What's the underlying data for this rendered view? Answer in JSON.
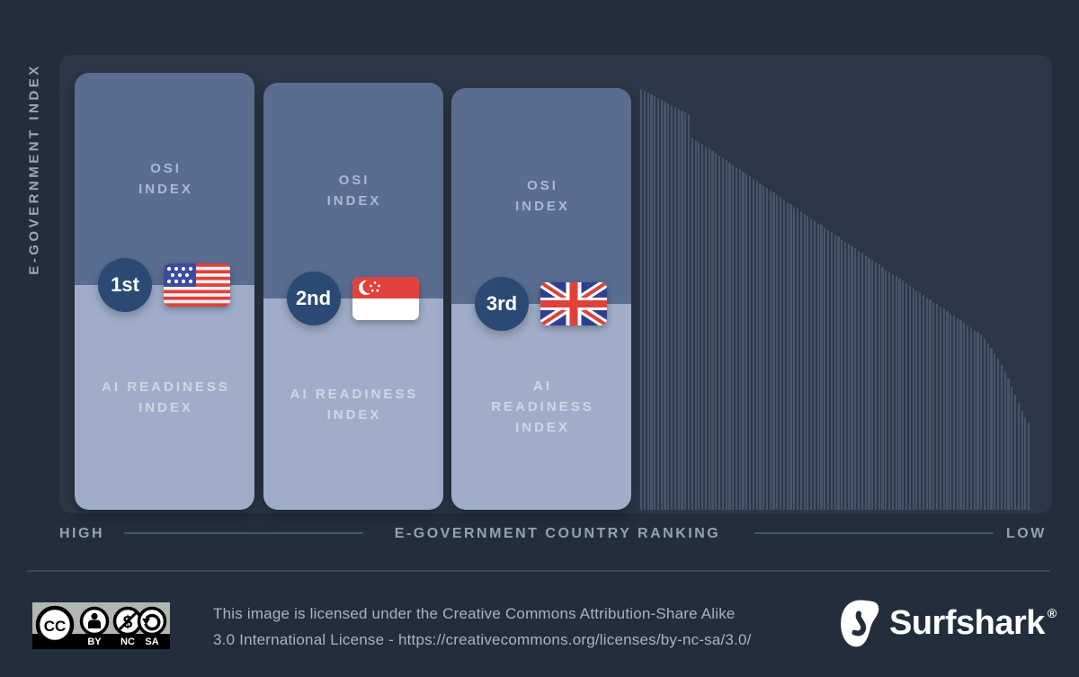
{
  "colors": {
    "outer_bg": "#222e3c",
    "panel_bg": "#2c3847",
    "osi_fill": "#5a6d91",
    "ai_fill": "#9fadc9",
    "badge_fill": "#2b4a73",
    "thin_bar_fill": "#45566c",
    "axis_text": "#93a1b1",
    "axis_line": "#46566a",
    "footer_text": "#a9b3be"
  },
  "y_axis": {
    "label": "E-GOVERNMENT INDEX"
  },
  "x_axis": {
    "left": "HIGH",
    "center": "E-GOVERNMENT COUNTRY RANKING",
    "right": "LOW"
  },
  "bars": [
    {
      "rank": "1st",
      "osi_line1": "OSI",
      "osi_line2": "INDEX",
      "ai_line1": "AI READINESS",
      "ai_line2": "INDEX"
    },
    {
      "rank": "2nd",
      "osi_line1": "OSI",
      "osi_line2": "INDEX",
      "ai_line1": "AI READINESS",
      "ai_line2": "INDEX"
    },
    {
      "rank": "3rd",
      "osi_line1": "OSI",
      "osi_line2": "INDEX",
      "ai_line1": "AI",
      "ai_line2": "READINESS",
      "ai_line3": "INDEX"
    }
  ],
  "chart_data": {
    "type": "bar",
    "xlabel": "E-GOVERNMENT COUNTRY RANKING",
    "ylabel": "E-GOVERNMENT INDEX",
    "x_direction": [
      "HIGH",
      "LOW"
    ],
    "legend": "none",
    "segments": [
      "OSI INDEX",
      "AI READINESS INDEX"
    ],
    "top3": [
      {
        "rank": "1st",
        "country_flag": "united-states",
        "osi_h": 236,
        "ai_h": 250,
        "total_h": 486
      },
      {
        "rank": "2nd",
        "country_flag": "singapore",
        "osi_h": 240,
        "ai_h": 235,
        "total_h": 475
      },
      {
        "rank": "3rd",
        "country_flag": "united-kingdom",
        "osi_h": 240,
        "ai_h": 229,
        "total_h": 469
      }
    ],
    "other_bars_heights": [
      468,
      466,
      464,
      462,
      460,
      458,
      456,
      454,
      452,
      450,
      448,
      446,
      444,
      442,
      440,
      414,
      411,
      409,
      407,
      404,
      402,
      399,
      397,
      394,
      391,
      389,
      386,
      384,
      381,
      379,
      376,
      373,
      371,
      368,
      366,
      363,
      360,
      358,
      355,
      353,
      350,
      348,
      345,
      342,
      340,
      337,
      335,
      332,
      329,
      327,
      324,
      322,
      319,
      317,
      314,
      311,
      309,
      306,
      304,
      301,
      298,
      296,
      293,
      291,
      288,
      286,
      283,
      280,
      278,
      275,
      273,
      270,
      267,
      265,
      262,
      260,
      257,
      255,
      252,
      249,
      247,
      244,
      242,
      239,
      236,
      234,
      231,
      229,
      226,
      224,
      221,
      218,
      216,
      213,
      211,
      208,
      205,
      203,
      200,
      198,
      195,
      190,
      185,
      180,
      174,
      168,
      161,
      154,
      146,
      137,
      128,
      119,
      110,
      103,
      97
    ]
  },
  "footer": {
    "license_line1": "This image is licensed under the Creative Commons Attribution-Share Alike",
    "license_line2": "3.0 International License - https://creativecommons.org/licenses/by-nc-sa/3.0/",
    "cc_by": "BY",
    "cc_nc": "NC",
    "cc_sa": "SA",
    "cc": "CC",
    "brand": "Surfshark",
    "registered": "®"
  }
}
